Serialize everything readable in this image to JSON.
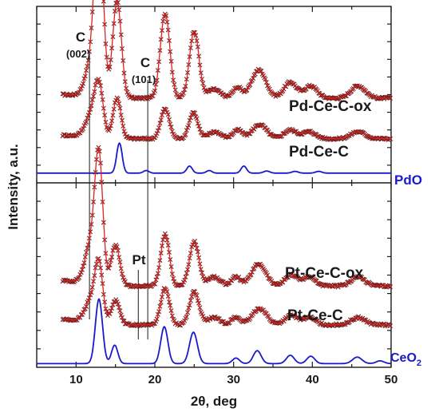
{
  "chart_data": [
    {
      "panel": "top",
      "type": "line",
      "xlabel": "2θ, deg",
      "ylabel": "Intensity, a.u.",
      "xlim": [
        5,
        50
      ],
      "annotations": [
        {
          "text": "C",
          "sub": "(002)",
          "x": 11.8
        },
        {
          "text": "C",
          "sub": "(101)",
          "x": 19.2
        }
      ],
      "series": [
        {
          "name": "Pd-Ce-C-ox",
          "style": "experimental + fit",
          "color_points": "#7a1f1f",
          "color_fit": "#e02020",
          "baseline": 0.48,
          "amp": 1.0,
          "peaks": [
            [
              8.0,
              3.0,
              0.02
            ],
            [
              11.9,
              0.75,
              0.18
            ],
            [
              12.9,
              0.55,
              0.95
            ],
            [
              15.2,
              0.55,
              0.55
            ],
            [
              21.3,
              0.6,
              0.48
            ],
            [
              25.0,
              0.6,
              0.38
            ],
            [
              27.5,
              0.8,
              0.05
            ],
            [
              30.5,
              0.6,
              0.06
            ],
            [
              33.2,
              0.9,
              0.16
            ],
            [
              37.2,
              0.8,
              0.09
            ],
            [
              39.8,
              0.8,
              0.07
            ],
            [
              45.8,
              0.9,
              0.07
            ]
          ]
        },
        {
          "name": "Pd-Ce-C",
          "style": "experimental + fit",
          "color_points": "#7a1f1f",
          "color_fit": "#e02020",
          "baseline": 0.25,
          "amp": 1.0,
          "peaks": [
            [
              8.0,
              3.0,
              0.02
            ],
            [
              11.9,
              0.75,
              0.12
            ],
            [
              12.9,
              0.55,
              0.28
            ],
            [
              15.2,
              0.5,
              0.23
            ],
            [
              21.3,
              0.55,
              0.17
            ],
            [
              24.9,
              0.55,
              0.15
            ],
            [
              27.6,
              0.8,
              0.04
            ],
            [
              30.5,
              0.6,
              0.05
            ],
            [
              33.3,
              0.9,
              0.08
            ],
            [
              37.2,
              0.8,
              0.05
            ],
            [
              39.6,
              0.8,
              0.04
            ],
            [
              45.8,
              0.9,
              0.04
            ]
          ]
        },
        {
          "name": "PdO",
          "style": "reference",
          "color_fit": "#1a1acc",
          "baseline": 0.055,
          "amp": 1.0,
          "peaks": [
            [
              15.5,
              0.35,
              0.17
            ],
            [
              18.9,
              0.35,
              0.015
            ],
            [
              24.4,
              0.35,
              0.04
            ],
            [
              26.9,
              0.35,
              0.015
            ],
            [
              31.3,
              0.35,
              0.04
            ],
            [
              34.2,
              0.4,
              0.012
            ],
            [
              37.8,
              0.4,
              0.01
            ],
            [
              40.8,
              0.4,
              0.01
            ]
          ]
        }
      ]
    },
    {
      "panel": "bottom",
      "type": "line",
      "xlabel": "2θ, deg",
      "ylabel": "Intensity, a.u.",
      "xlim": [
        5,
        50
      ],
      "xticks": [
        10,
        20,
        30,
        40,
        50
      ],
      "annotations": [
        {
          "text": "Pt",
          "x": 18.0
        }
      ],
      "series": [
        {
          "name": "Pt-Ce-C-ox",
          "style": "experimental + fit",
          "color_points": "#7a1f1f",
          "color_fit": "#e02020",
          "baseline": 0.44,
          "amp": 1.0,
          "peaks": [
            [
              8.0,
              3.0,
              0.03
            ],
            [
              11.9,
              0.75,
              0.22
            ],
            [
              12.9,
              0.5,
              0.65
            ],
            [
              15.0,
              0.55,
              0.22
            ],
            [
              21.3,
              0.55,
              0.28
            ],
            [
              25.0,
              0.6,
              0.24
            ],
            [
              27.5,
              0.8,
              0.05
            ],
            [
              30.3,
              0.6,
              0.05
            ],
            [
              33.2,
              0.9,
              0.12
            ],
            [
              37.3,
              0.8,
              0.06
            ],
            [
              39.6,
              0.8,
              0.05
            ],
            [
              45.8,
              0.9,
              0.05
            ]
          ]
        },
        {
          "name": "Pt-Ce-C",
          "style": "experimental + fit",
          "color_points": "#7a1f1f",
          "color_fit": "#e02020",
          "baseline": 0.23,
          "amp": 1.0,
          "peaks": [
            [
              8.0,
              3.0,
              0.03
            ],
            [
              11.9,
              0.75,
              0.12
            ],
            [
              12.9,
              0.5,
              0.3
            ],
            [
              15.0,
              0.55,
              0.13
            ],
            [
              21.3,
              0.55,
              0.2
            ],
            [
              25.0,
              0.6,
              0.18
            ],
            [
              27.5,
              0.8,
              0.04
            ],
            [
              30.3,
              0.6,
              0.04
            ],
            [
              33.3,
              0.9,
              0.09
            ],
            [
              37.3,
              0.8,
              0.05
            ],
            [
              39.6,
              0.8,
              0.04
            ],
            [
              45.8,
              0.9,
              0.04
            ]
          ]
        },
        {
          "name": "CeO",
          "name_sub": "2",
          "style": "reference",
          "color_fit": "#1a1acc",
          "baseline": 0.02,
          "amp": 1.0,
          "peaks": [
            [
              12.9,
              0.45,
              0.35
            ],
            [
              14.9,
              0.4,
              0.1
            ],
            [
              21.2,
              0.45,
              0.2
            ],
            [
              24.9,
              0.5,
              0.17
            ],
            [
              30.3,
              0.45,
              0.03
            ],
            [
              33.0,
              0.5,
              0.07
            ],
            [
              37.2,
              0.5,
              0.045
            ],
            [
              39.8,
              0.5,
              0.04
            ],
            [
              45.7,
              0.6,
              0.035
            ],
            [
              48.6,
              0.5,
              0.015
            ]
          ]
        }
      ]
    }
  ]
}
